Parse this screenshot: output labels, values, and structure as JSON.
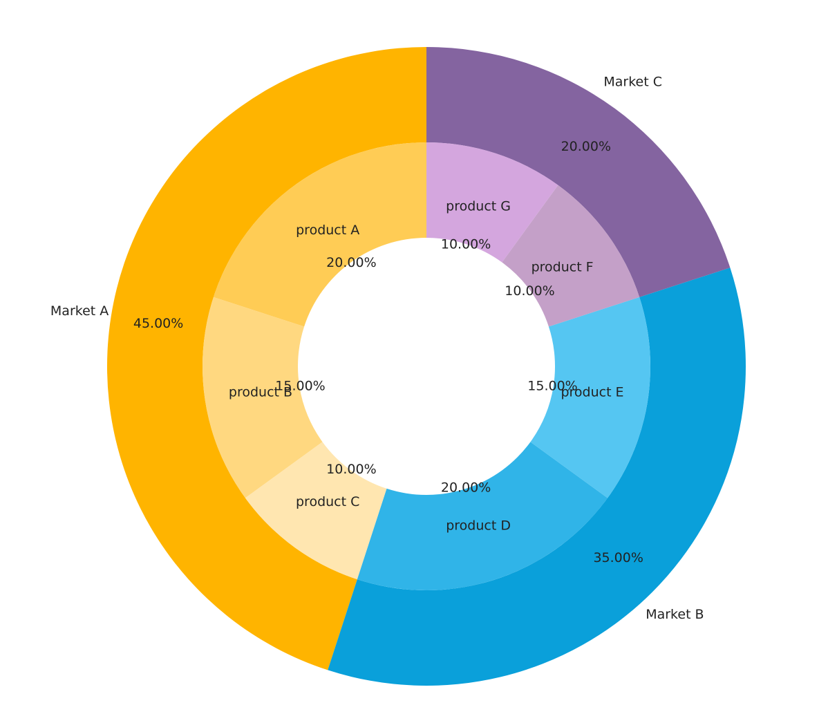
{
  "chart_data": {
    "type": "pie",
    "style": "nested-donut",
    "start_angle_deg": 90,
    "direction": "counterclockwise",
    "outer": [
      {
        "label": "Market A",
        "value": 45,
        "pct": "45.00%",
        "color": "#FFB400"
      },
      {
        "label": "Market B",
        "value": 35,
        "pct": "35.00%",
        "color": "#0AA0DA"
      },
      {
        "label": "Market C",
        "value": 20,
        "pct": "20.00%",
        "color": "#8464A0"
      }
    ],
    "inner": [
      {
        "label": "product A",
        "value": 20,
        "pct": "20.00%",
        "color": "#FFCC55"
      },
      {
        "label": "product B",
        "value": 15,
        "pct": "15.00%",
        "color": "#FFD880"
      },
      {
        "label": "product C",
        "value": 10,
        "pct": "10.00%",
        "color": "#FFE6B0"
      },
      {
        "label": "product D",
        "value": 20,
        "pct": "20.00%",
        "color": "#30B4E8"
      },
      {
        "label": "product E",
        "value": 15,
        "pct": "15.00%",
        "color": "#55C6F2"
      },
      {
        "label": "product F",
        "value": 10,
        "pct": "10.00%",
        "color": "#C4A0C8"
      },
      {
        "label": "product G",
        "value": 10,
        "pct": "10.00%",
        "color": "#D4A6DE"
      }
    ]
  }
}
